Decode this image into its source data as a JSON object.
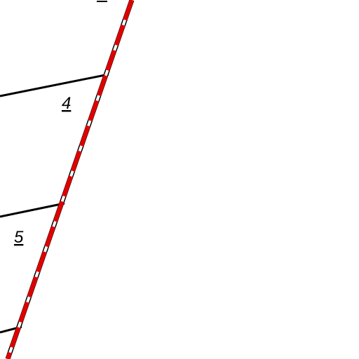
{
  "map": {
    "colors": {
      "background": "#ffffff",
      "boundary_line": "#000000",
      "dashed_line_red": "#e00000",
      "dashed_line_black": "#000000"
    },
    "parcels": [
      {
        "label": "4"
      },
      {
        "label": "5"
      }
    ]
  }
}
